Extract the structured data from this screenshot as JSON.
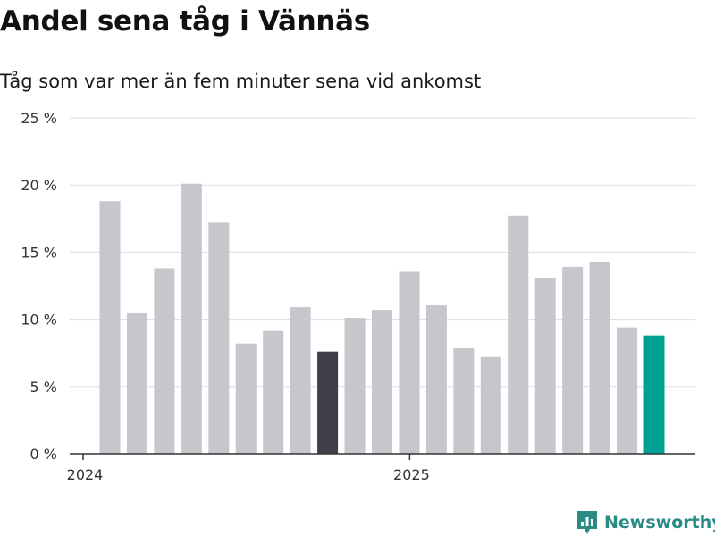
{
  "header": {
    "title": "Andel sena tåg i Vännäs",
    "subtitle": "Tåg som var mer än fem minuter sena vid ankomst"
  },
  "chart_data": {
    "type": "bar",
    "title": "Andel sena tåg i Vännäs",
    "subtitle": "Tåg som var mer än fem minuter sena vid ankomst",
    "xlabel": "",
    "ylabel": "",
    "ylim": [
      0,
      25
    ],
    "y_ticks": [
      0,
      5,
      10,
      15,
      20,
      25
    ],
    "y_tick_labels": [
      "0 %",
      "5 %",
      "10 %",
      "15 %",
      "20 %",
      "25 %"
    ],
    "x_tick_labels": [
      {
        "label": "2024",
        "bar_index": 0
      },
      {
        "label": "2025",
        "bar_index": 12
      }
    ],
    "grid": true,
    "values": [
      18.8,
      10.5,
      13.8,
      20.1,
      17.2,
      8.2,
      9.2,
      10.9,
      7.6,
      10.1,
      10.7,
      13.6,
      11.1,
      7.9,
      7.2,
      17.7,
      13.1,
      13.9,
      14.3,
      9.4,
      8.8
    ],
    "bar_colors": [
      "#c6c6cc",
      "#c6c6cc",
      "#c6c6cc",
      "#c6c6cc",
      "#c6c6cc",
      "#c6c6cc",
      "#c6c6cc",
      "#c6c6cc",
      "#403e4b",
      "#c6c6cc",
      "#c6c6cc",
      "#c6c6cc",
      "#c6c6cc",
      "#c6c6cc",
      "#c6c6cc",
      "#c6c6cc",
      "#c6c6cc",
      "#c6c6cc",
      "#c6c6cc",
      "#c6c6cc",
      "#00a095"
    ]
  },
  "branding": {
    "logo_text": "Newsworthy",
    "logo_color": "#2a8a84"
  }
}
